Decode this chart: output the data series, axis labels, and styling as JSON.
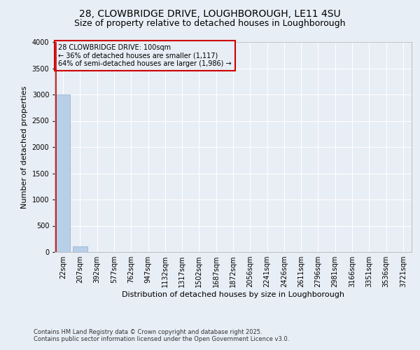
{
  "title_line1": "28, CLOWBRIDGE DRIVE, LOUGHBOROUGH, LE11 4SU",
  "title_line2": "Size of property relative to detached houses in Loughborough",
  "xlabel": "Distribution of detached houses by size in Loughborough",
  "ylabel": "Number of detached properties",
  "footer_line1": "Contains HM Land Registry data © Crown copyright and database right 2025.",
  "footer_line2": "Contains public sector information licensed under the Open Government Licence v3.0.",
  "categories": [
    "22sqm",
    "207sqm",
    "392sqm",
    "577sqm",
    "762sqm",
    "947sqm",
    "1132sqm",
    "1317sqm",
    "1502sqm",
    "1687sqm",
    "1872sqm",
    "2056sqm",
    "2241sqm",
    "2426sqm",
    "2611sqm",
    "2796sqm",
    "2981sqm",
    "3166sqm",
    "3351sqm",
    "3536sqm",
    "3721sqm"
  ],
  "values": [
    3000,
    110,
    0,
    0,
    0,
    0,
    0,
    0,
    0,
    0,
    0,
    0,
    0,
    0,
    0,
    0,
    0,
    0,
    0,
    0,
    0
  ],
  "bar_color": "#b8cfe8",
  "bar_edge_color": "#8aafd4",
  "bg_color": "#e8eef5",
  "grid_color": "#ffffff",
  "annotation_text": "28 CLOWBRIDGE DRIVE: 100sqm\n← 36% of detached houses are smaller (1,117)\n64% of semi-detached houses are larger (1,986) →",
  "annotation_box_color": "#cc0000",
  "vline_color": "#cc0000",
  "ylim": [
    0,
    4000
  ],
  "yticks": [
    0,
    500,
    1000,
    1500,
    2000,
    2500,
    3000,
    3500,
    4000
  ],
  "title_fontsize": 10,
  "subtitle_fontsize": 9,
  "axis_label_fontsize": 8,
  "tick_fontsize": 7,
  "ann_fontsize": 7,
  "footer_fontsize": 6
}
